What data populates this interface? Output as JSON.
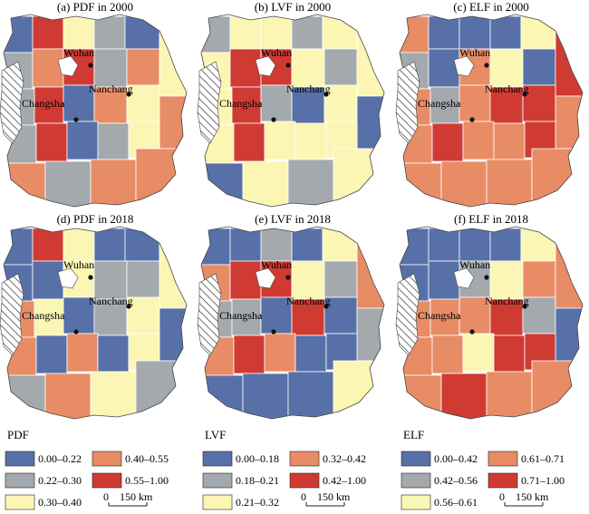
{
  "colors": {
    "blue": "#5870a8",
    "gray": "#a4a9ad",
    "yellow": "#fbf6b4",
    "orange": "#e88c66",
    "red": "#cf3b33",
    "border": "#ffffff",
    "outline": "#444444"
  },
  "city_names": {
    "wuhan": "Wuhan",
    "changsha": "Changsha",
    "nanchang": "Nanchang"
  },
  "panels": [
    {
      "id": "a",
      "title": "(a) PDF in 2000",
      "palette": [
        "blue",
        "red",
        "yellow",
        "gray",
        "blue",
        "gray",
        "orange",
        "red",
        "gray",
        "orange",
        "yellow",
        "gray",
        "red",
        "blue",
        "orange",
        "yellow",
        "orange",
        "gray",
        "red",
        "blue",
        "gray",
        "yellow",
        "orange",
        "gray",
        "orange",
        "orange"
      ]
    },
    {
      "id": "b",
      "title": "(b) LVF in 2000",
      "palette": [
        "gray",
        "yellow",
        "yellow",
        "gray",
        "yellow",
        "yellow",
        "red",
        "red",
        "yellow",
        "gray",
        "yellow",
        "yellow",
        "red",
        "gray",
        "blue",
        "yellow",
        "blue",
        "yellow",
        "red",
        "yellow",
        "yellow",
        "yellow",
        "blue",
        "yellow",
        "gray",
        "yellow"
      ]
    },
    {
      "id": "c",
      "title": "(c) ELF in 2000",
      "palette": [
        "orange",
        "blue",
        "blue",
        "blue",
        "yellow",
        "gray",
        "blue",
        "orange",
        "yellow",
        "blue",
        "red",
        "orange",
        "gray",
        "orange",
        "red",
        "red",
        "orange",
        "orange",
        "red",
        "orange",
        "orange",
        "red",
        "orange",
        "orange",
        "orange",
        "orange"
      ]
    },
    {
      "id": "d",
      "title": "(d) PDF in 2018",
      "palette": [
        "blue",
        "red",
        "yellow",
        "blue",
        "blue",
        "blue",
        "blue",
        "yellow",
        "gray",
        "gray",
        "yellow",
        "orange",
        "yellow",
        "blue",
        "gray",
        "yellow",
        "blue",
        "orange",
        "blue",
        "orange",
        "blue",
        "yellow",
        "gray",
        "orange",
        "yellow",
        "gray"
      ]
    },
    {
      "id": "e",
      "title": "(e) LVF in 2018",
      "palette": [
        "blue",
        "blue",
        "gray",
        "blue",
        "yellow",
        "orange",
        "red",
        "red",
        "yellow",
        "gray",
        "orange",
        "gray",
        "gray",
        "blue",
        "red",
        "blue",
        "gray",
        "orange",
        "red",
        "orange",
        "blue",
        "blue",
        "blue",
        "blue",
        "blue",
        "yellow"
      ]
    },
    {
      "id": "f",
      "title": "(f) ELF in 2018",
      "palette": [
        "blue",
        "blue",
        "blue",
        "blue",
        "yellow",
        "blue",
        "blue",
        "gray",
        "yellow",
        "orange",
        "orange",
        "orange",
        "orange",
        "orange",
        "red",
        "gray",
        "blue",
        "orange",
        "orange",
        "yellow",
        "red",
        "red",
        "orange",
        "red",
        "orange",
        "orange"
      ]
    }
  ],
  "legends": [
    {
      "id": "pdf",
      "title": "PDF",
      "items": [
        {
          "label": "0.00–0.22",
          "color": "blue"
        },
        {
          "label": "0.40–0.55",
          "color": "orange"
        },
        {
          "label": "0.22–0.30",
          "color": "gray"
        },
        {
          "label": "0.55–1.00",
          "color": "red"
        },
        {
          "label": "0.30–0.40",
          "color": "yellow"
        }
      ],
      "scale": {
        "zero": "0",
        "label": "150 km"
      }
    },
    {
      "id": "lvf",
      "title": "LVF",
      "items": [
        {
          "label": "0.00–0.18",
          "color": "blue"
        },
        {
          "label": "0.32–0.42",
          "color": "orange"
        },
        {
          "label": "0.18–0.21",
          "color": "gray"
        },
        {
          "label": "0.42–1.00",
          "color": "red"
        },
        {
          "label": "0.21–0.32",
          "color": "yellow"
        }
      ],
      "scale": {
        "zero": "0",
        "label": "150 km"
      }
    },
    {
      "id": "elf",
      "title": "ELF",
      "items": [
        {
          "label": "0.00–0.42",
          "color": "blue"
        },
        {
          "label": "0.61–0.71",
          "color": "orange"
        },
        {
          "label": "0.42–0.56",
          "color": "gray"
        },
        {
          "label": "0.71–1.00",
          "color": "red"
        },
        {
          "label": "0.56–0.61",
          "color": "yellow"
        }
      ],
      "scale": {
        "zero": "0",
        "label": "150 km"
      }
    }
  ]
}
